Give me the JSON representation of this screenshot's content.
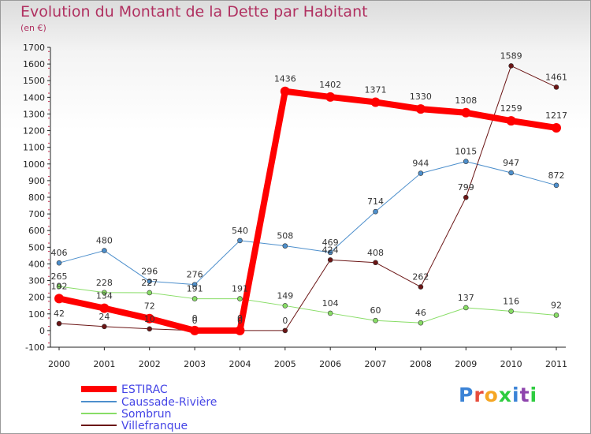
{
  "header": {
    "title": "Evolution du Montant de la Dette par Habitant",
    "subtitle": "(en €)"
  },
  "logo": {
    "text": "Proxiti",
    "letter_colors": [
      "#3b83d6",
      "#e74c3c",
      "#f5a623",
      "#2ecc40",
      "#3b83d6",
      "#8e44ad",
      "#2ecc40"
    ]
  },
  "chart_data": {
    "type": "line",
    "title": "Evolution du Montant de la Dette par Habitant",
    "subtitle": "(en €)",
    "categories": [
      "2000",
      "2001",
      "2002",
      "2003",
      "2004",
      "2005",
      "2006",
      "2007",
      "2008",
      "2009",
      "2010",
      "2011"
    ],
    "ylim": [
      -100,
      1700
    ],
    "yticks": [
      -100,
      0,
      100,
      200,
      300,
      400,
      500,
      600,
      700,
      800,
      900,
      1000,
      1100,
      1200,
      1300,
      1400,
      1500,
      1600,
      1700
    ],
    "grid": false,
    "legend_position": "bottom-left",
    "series": [
      {
        "name": "ESTIRAC",
        "color": "#ff0000",
        "values": [
          192,
          134,
          72,
          0,
          0,
          1436,
          1402,
          1371,
          1330,
          1308,
          1259,
          1217
        ]
      },
      {
        "name": "Caussade-Rivière",
        "color": "#4d8fcc",
        "values": [
          406,
          480,
          296,
          276,
          540,
          508,
          469,
          714,
          944,
          1015,
          947,
          872
        ]
      },
      {
        "name": "Sombrun",
        "color": "#88dd66",
        "values": [
          265,
          228,
          227,
          191,
          191,
          149,
          104,
          60,
          46,
          137,
          116,
          92
        ]
      },
      {
        "name": "Villefranque",
        "color": "#6b1515",
        "values": [
          42,
          24,
          10,
          0,
          0,
          0,
          424,
          408,
          262,
          799,
          1589,
          1461
        ]
      }
    ]
  }
}
